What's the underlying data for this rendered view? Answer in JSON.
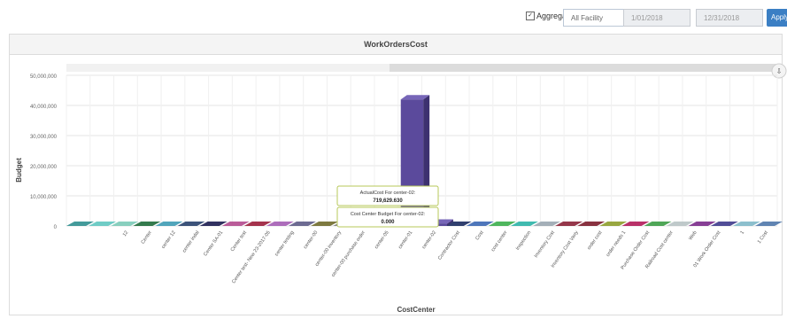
{
  "toolbar": {
    "aggregate_label": "Aggregate",
    "aggregate_checked": true,
    "facility_value": "All Facility",
    "start_date": "1/01/2018",
    "end_date": "12/31/2018",
    "apply_label": "Apply"
  },
  "chart_data": {
    "type": "bar",
    "title": "WorkOrdersCost",
    "xlabel": "CostCenter",
    "ylabel": "Budget",
    "ylim": [
      0,
      50000000
    ],
    "yticks": [
      "50,000,000",
      "40,000,000",
      "30,000,000",
      "20,000,000",
      "10,000,000",
      "0"
    ],
    "ytick_values": [
      50000000,
      40000000,
      30000000,
      20000000,
      10000000,
      0
    ],
    "categories": [
      "",
      "",
      "12",
      "Center",
      "center 12",
      "center indal",
      "Center SA-01",
      "Center test",
      "Center test- New 23-2017-05",
      "center testing",
      "center-00",
      "center-00 inventory",
      "center-00 purchase order",
      "center-05",
      "center-01",
      "center-02",
      "Contractor Cost",
      "Cost",
      "cost center",
      "Inspection",
      "Inventory Cost",
      "Inventory Cost Variy",
      "order cost",
      "order needs 1",
      "Purchase Order Cost",
      "Railroad Cost center",
      "Web",
      "01 Work Order Cost",
      "1",
      "1 Cost"
    ],
    "series": [
      {
        "name": "ActualCost",
        "color": "#5b4a9c",
        "values": [
          0,
          0,
          0,
          0,
          0,
          0,
          0,
          0,
          0,
          0,
          0,
          0,
          0,
          0,
          42000000,
          719629.63,
          0,
          0,
          0,
          0,
          0,
          0,
          0,
          0,
          0,
          0,
          0,
          0,
          0,
          0
        ]
      },
      {
        "name": "Cost Center Budget",
        "values": [
          0,
          0,
          0,
          0,
          0,
          0,
          0,
          0,
          0,
          0,
          0,
          0,
          0,
          0,
          0,
          0,
          0,
          0,
          0,
          0,
          0,
          0,
          0,
          0,
          0,
          0,
          0,
          0,
          0,
          0
        ]
      }
    ],
    "slab_colors": [
      "#2f8f8f",
      "#5fc7c0",
      "#7bcab7",
      "#1e6b3a",
      "#3e9bb4",
      "#27406b",
      "#1b1b4f",
      "#b24a8e",
      "#9b1d3a",
      "#a45db4",
      "#5d5b86",
      "#6f6a2b",
      "#7d7c7c",
      "#c98bd0",
      "#b9c8ce",
      "#3c3b8f",
      "#a7d943",
      "#1a2a5e",
      "#3b67b2",
      "#3cae4c",
      "#2bb3a6",
      "#9aa6b0",
      "#8a2136",
      "#7b1c2b",
      "#8d9d2b",
      "#b11b59",
      "#3c9c45",
      "#b8c3c4",
      "#7a2a8a",
      "#3e3a8c",
      "#7fb8c8",
      "#4f77aa"
    ],
    "tooltips": [
      {
        "title": "ActualCost For center-02:",
        "value": "719,629.630"
      },
      {
        "title": "Cost Center Budget For center-02:",
        "value": "0.000"
      }
    ]
  }
}
